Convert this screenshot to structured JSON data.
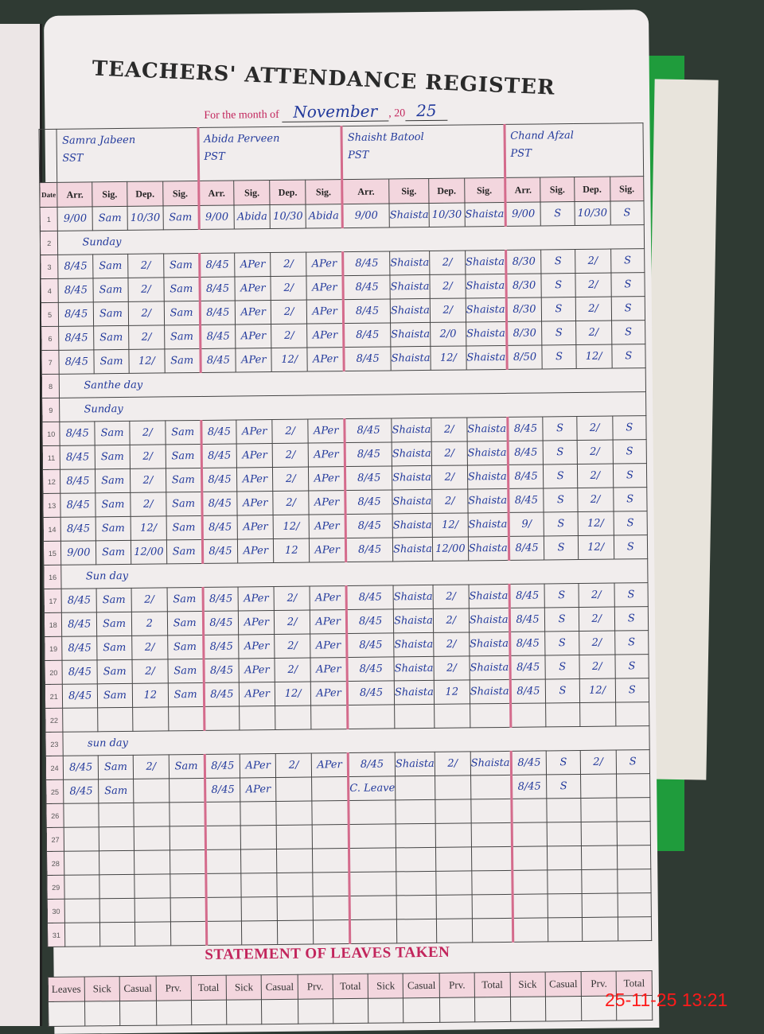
{
  "register": {
    "title": "TEACHERS' ATTENDANCE REGISTER",
    "month_label": "For the month of",
    "month": "November",
    "year_prefix": ", 20",
    "year": "25",
    "columns": [
      "Arr.",
      "Sig.",
      "Dep.",
      "Sig."
    ],
    "date_header": "Date",
    "teachers": [
      {
        "name": "Samra Jabeen",
        "designation": "SST"
      },
      {
        "name": "Abida Perveen",
        "designation": "PST"
      },
      {
        "name": "Shaisht Batool",
        "designation": "PST"
      },
      {
        "name": "Chand Afzal",
        "designation": "PST"
      }
    ],
    "rows": [
      {
        "day": "1",
        "entries": [
          [
            "9/00",
            "Sam",
            "10/30",
            "Sam"
          ],
          [
            "9/00",
            "Abida",
            "10/30",
            "Abida"
          ],
          [
            "9/00",
            "Shaista",
            "10/30",
            "Shaista"
          ],
          [
            "9/00",
            "S",
            "10/30",
            "S"
          ]
        ]
      },
      {
        "day": "2",
        "note": "Sunday"
      },
      {
        "day": "3",
        "entries": [
          [
            "8/45",
            "Sam",
            "2/",
            "Sam"
          ],
          [
            "8/45",
            "APer",
            "2/",
            "APer"
          ],
          [
            "8/45",
            "Shaista",
            "2/",
            "Shaista"
          ],
          [
            "8/30",
            "S",
            "2/",
            "S"
          ]
        ]
      },
      {
        "day": "4",
        "entries": [
          [
            "8/45",
            "Sam",
            "2/",
            "Sam"
          ],
          [
            "8/45",
            "APer",
            "2/",
            "APer"
          ],
          [
            "8/45",
            "Shaista",
            "2/",
            "Shaista"
          ],
          [
            "8/30",
            "S",
            "2/",
            "S"
          ]
        ]
      },
      {
        "day": "5",
        "entries": [
          [
            "8/45",
            "Sam",
            "2/",
            "Sam"
          ],
          [
            "8/45",
            "APer",
            "2/",
            "APer"
          ],
          [
            "8/45",
            "Shaista",
            "2/",
            "Shaista"
          ],
          [
            "8/30",
            "S",
            "2/",
            "S"
          ]
        ]
      },
      {
        "day": "6",
        "entries": [
          [
            "8/45",
            "Sam",
            "2/",
            "Sam"
          ],
          [
            "8/45",
            "APer",
            "2/",
            "APer"
          ],
          [
            "8/45",
            "Shaista",
            "2/0",
            "Shaista"
          ],
          [
            "8/30",
            "S",
            "2/",
            "S"
          ]
        ]
      },
      {
        "day": "7",
        "entries": [
          [
            "8/45",
            "Sam",
            "12/",
            "Sam"
          ],
          [
            "8/45",
            "APer",
            "12/",
            "APer"
          ],
          [
            "8/45",
            "Shaista",
            "12/",
            "Shaista"
          ],
          [
            "8/50",
            "S",
            "12/",
            "S"
          ]
        ]
      },
      {
        "day": "8",
        "note": "Santhe day"
      },
      {
        "day": "9",
        "note": "Sunday"
      },
      {
        "day": "10",
        "entries": [
          [
            "8/45",
            "Sam",
            "2/",
            "Sam"
          ],
          [
            "8/45",
            "APer",
            "2/",
            "APer"
          ],
          [
            "8/45",
            "Shaista",
            "2/",
            "Shaista"
          ],
          [
            "8/45",
            "S",
            "2/",
            "S"
          ]
        ]
      },
      {
        "day": "11",
        "entries": [
          [
            "8/45",
            "Sam",
            "2/",
            "Sam"
          ],
          [
            "8/45",
            "APer",
            "2/",
            "APer"
          ],
          [
            "8/45",
            "Shaista",
            "2/",
            "Shaista"
          ],
          [
            "8/45",
            "S",
            "2/",
            "S"
          ]
        ]
      },
      {
        "day": "12",
        "entries": [
          [
            "8/45",
            "Sam",
            "2/",
            "Sam"
          ],
          [
            "8/45",
            "APer",
            "2/",
            "APer"
          ],
          [
            "8/45",
            "Shaista",
            "2/",
            "Shaista"
          ],
          [
            "8/45",
            "S",
            "2/",
            "S"
          ]
        ]
      },
      {
        "day": "13",
        "entries": [
          [
            "8/45",
            "Sam",
            "2/",
            "Sam"
          ],
          [
            "8/45",
            "APer",
            "2/",
            "APer"
          ],
          [
            "8/45",
            "Shaista",
            "2/",
            "Shaista"
          ],
          [
            "8/45",
            "S",
            "2/",
            "S"
          ]
        ]
      },
      {
        "day": "14",
        "entries": [
          [
            "8/45",
            "Sam",
            "12/",
            "Sam"
          ],
          [
            "8/45",
            "APer",
            "12/",
            "APer"
          ],
          [
            "8/45",
            "Shaista",
            "12/",
            "Shaista"
          ],
          [
            "9/",
            "S",
            "12/",
            "S"
          ]
        ]
      },
      {
        "day": "15",
        "entries": [
          [
            "9/00",
            "Sam",
            "12/00",
            "Sam"
          ],
          [
            "8/45",
            "APer",
            "12",
            "APer"
          ],
          [
            "8/45",
            "Shaista",
            "12/00",
            "Shaista"
          ],
          [
            "8/45",
            "S",
            "12/",
            "S"
          ]
        ]
      },
      {
        "day": "16",
        "note": "Sun day"
      },
      {
        "day": "17",
        "entries": [
          [
            "8/45",
            "Sam",
            "2/",
            "Sam"
          ],
          [
            "8/45",
            "APer",
            "2/",
            "APer"
          ],
          [
            "8/45",
            "Shaista",
            "2/",
            "Shaista"
          ],
          [
            "8/45",
            "S",
            "2/",
            "S"
          ]
        ]
      },
      {
        "day": "18",
        "entries": [
          [
            "8/45",
            "Sam",
            "2",
            "Sam"
          ],
          [
            "8/45",
            "APer",
            "2/",
            "APer"
          ],
          [
            "8/45",
            "Shaista",
            "2/",
            "Shaista"
          ],
          [
            "8/45",
            "S",
            "2/",
            "S"
          ]
        ]
      },
      {
        "day": "19",
        "entries": [
          [
            "8/45",
            "Sam",
            "2/",
            "Sam"
          ],
          [
            "8/45",
            "APer",
            "2/",
            "APer"
          ],
          [
            "8/45",
            "Shaista",
            "2/",
            "Shaista"
          ],
          [
            "8/45",
            "S",
            "2/",
            "S"
          ]
        ]
      },
      {
        "day": "20",
        "entries": [
          [
            "8/45",
            "Sam",
            "2/",
            "Sam"
          ],
          [
            "8/45",
            "APer",
            "2/",
            "APer"
          ],
          [
            "8/45",
            "Shaista",
            "2/",
            "Shaista"
          ],
          [
            "8/45",
            "S",
            "2/",
            "S"
          ]
        ]
      },
      {
        "day": "21",
        "entries": [
          [
            "8/45",
            "Sam",
            "12",
            "Sam"
          ],
          [
            "8/45",
            "APer",
            "12/",
            "APer"
          ],
          [
            "8/45",
            "Shaista",
            "12",
            "Shaista"
          ],
          [
            "8/45",
            "S",
            "12/",
            "S"
          ]
        ]
      },
      {
        "day": "22"
      },
      {
        "day": "23",
        "note": "sun day"
      },
      {
        "day": "24",
        "entries": [
          [
            "8/45",
            "Sam",
            "2/",
            "Sam"
          ],
          [
            "8/45",
            "APer",
            "2/",
            "APer"
          ],
          [
            "8/45",
            "Shaista",
            "2/",
            "Shaista"
          ],
          [
            "8/45",
            "S",
            "2/",
            "S"
          ]
        ]
      },
      {
        "day": "25",
        "entries": [
          [
            "8/45",
            "Sam",
            "",
            ""
          ],
          [
            "8/45",
            "APer",
            "",
            ""
          ],
          [
            "C. Leave",
            "",
            "",
            ""
          ],
          [
            "8/45",
            "S",
            "",
            ""
          ]
        ]
      },
      {
        "day": "26"
      },
      {
        "day": "27"
      },
      {
        "day": "28"
      },
      {
        "day": "29"
      },
      {
        "day": "30"
      },
      {
        "day": "31"
      }
    ]
  },
  "leaves": {
    "title": "STATEMENT OF LEAVES TAKEN",
    "row_label": "Leaves",
    "columns": [
      "Sick",
      "Casual",
      "Prv.",
      "Total"
    ]
  },
  "timestamp": "25-11-25  13:21",
  "colors": {
    "ink": "#233a9c",
    "print_red": "#c2255c",
    "timestamp": "#ff1a1a"
  }
}
